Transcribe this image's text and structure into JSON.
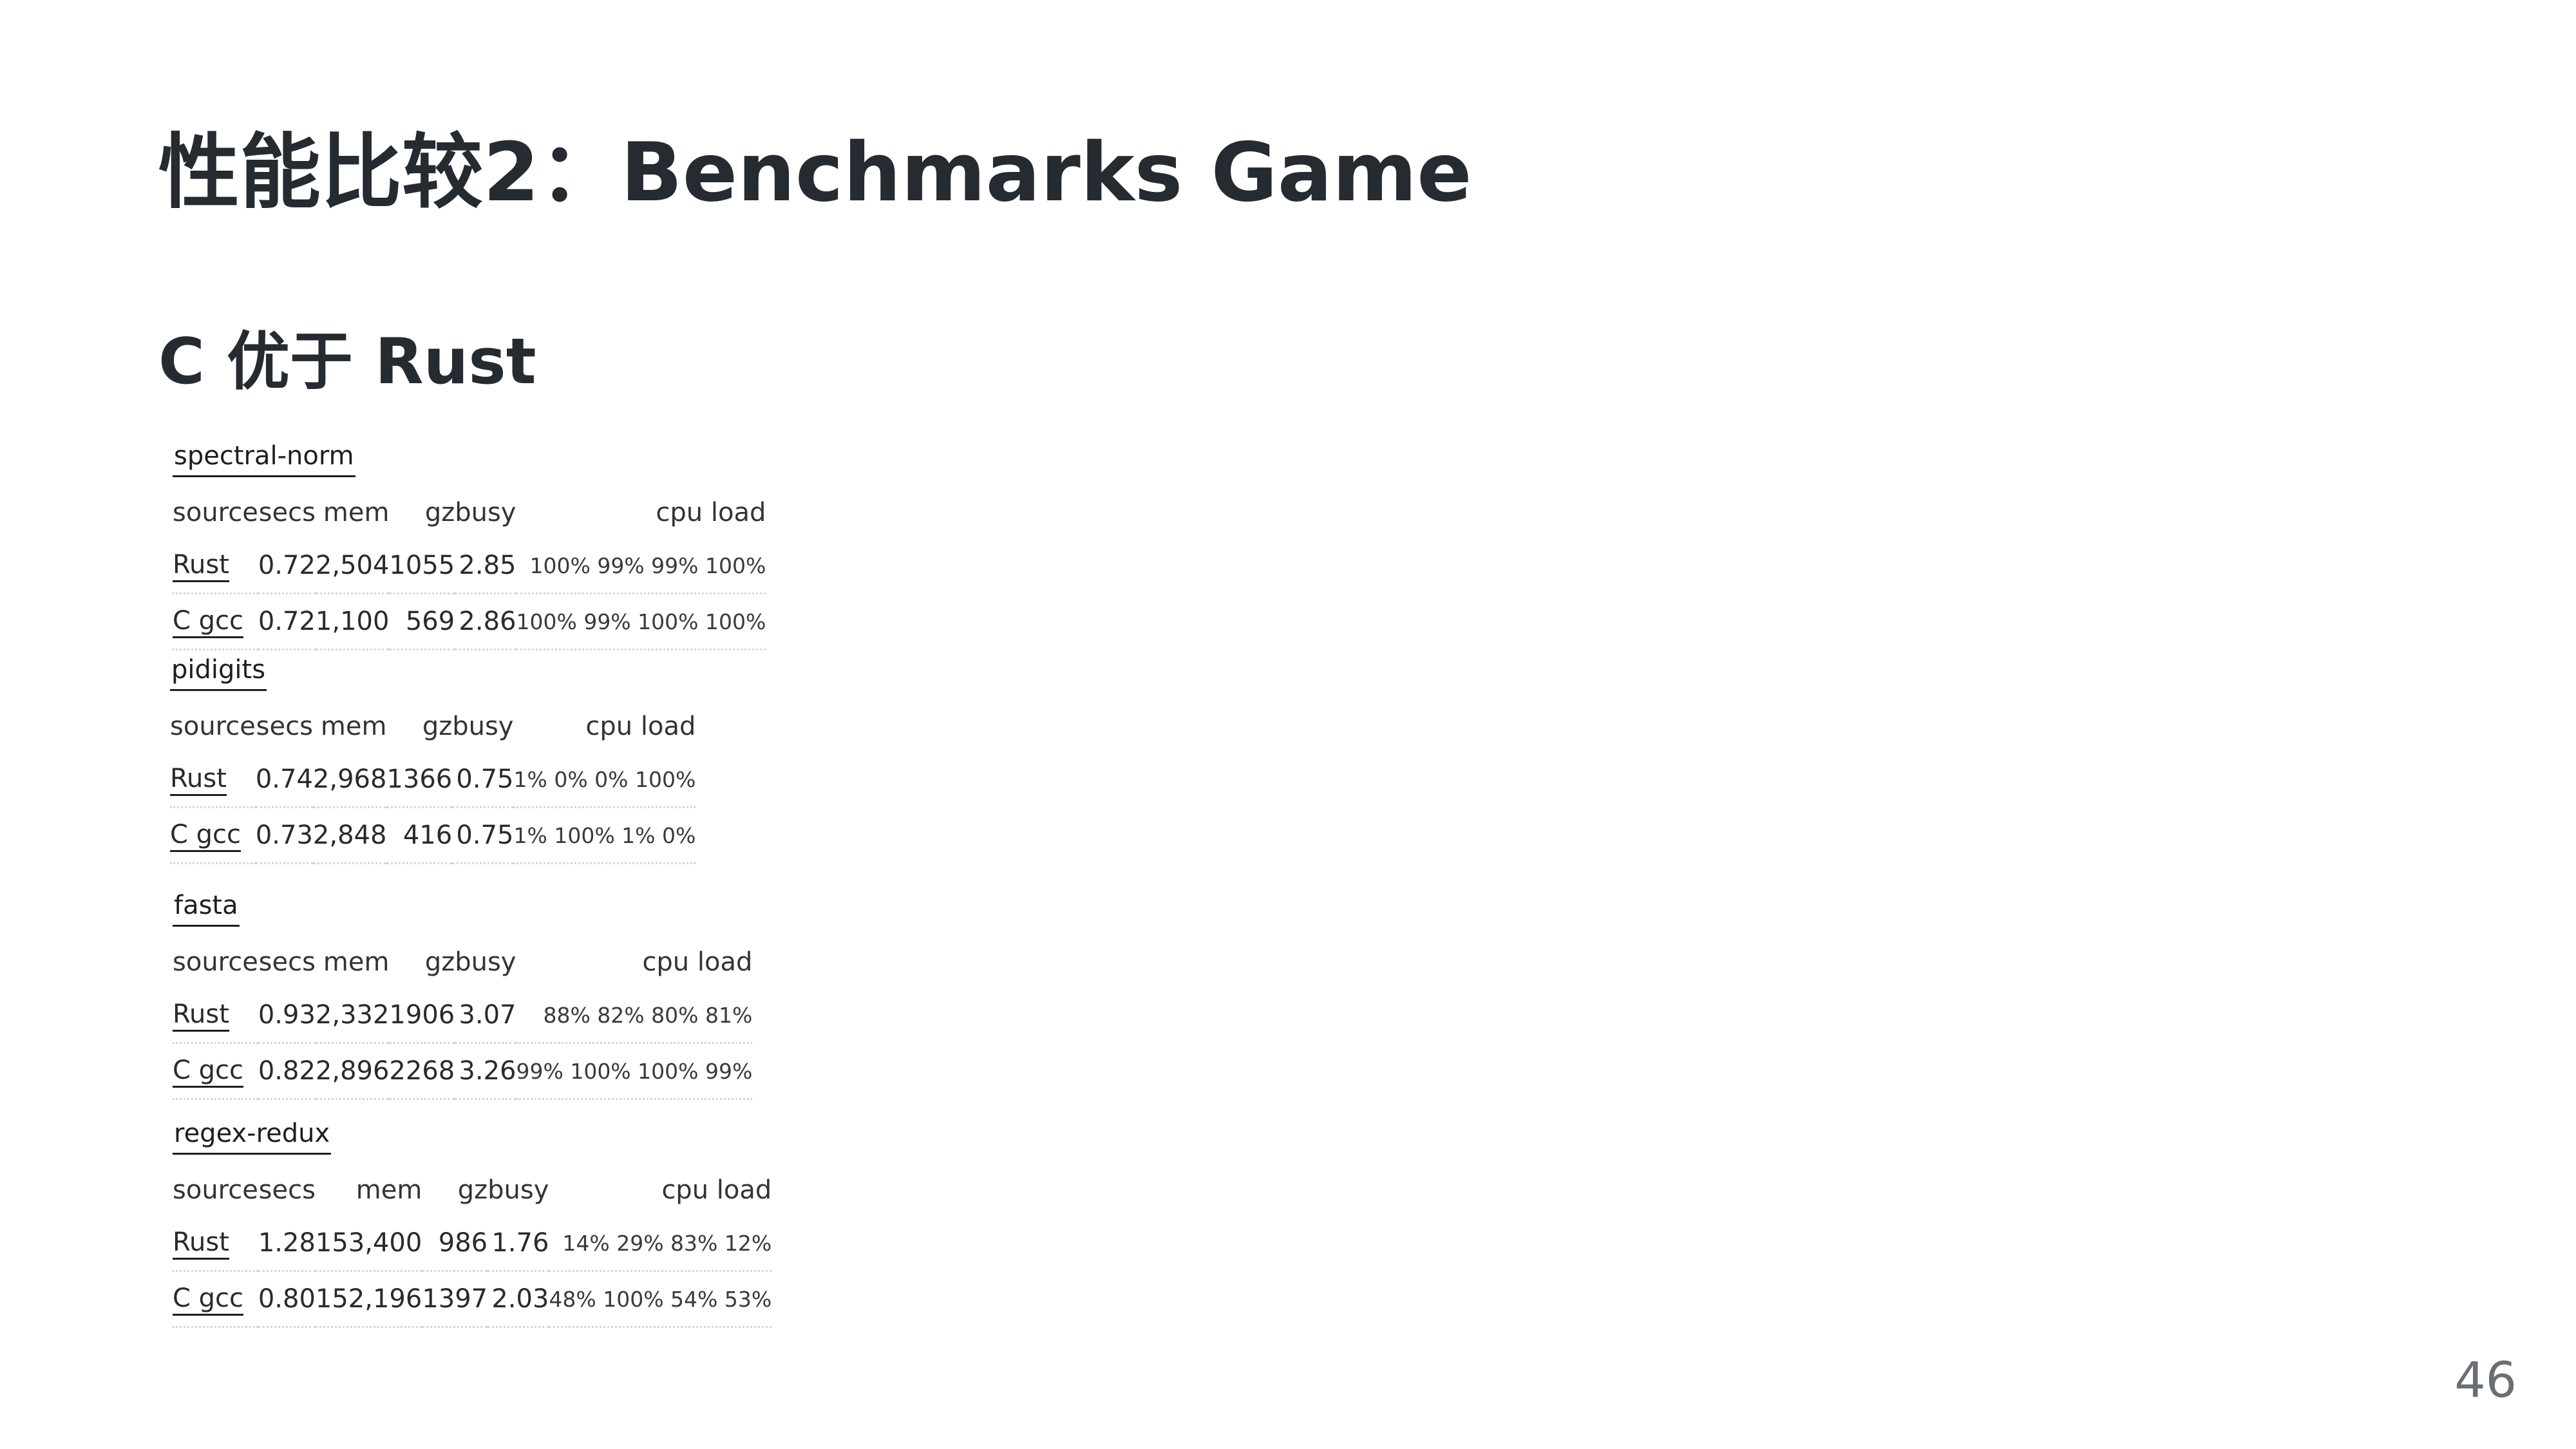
{
  "title": "性能比较2：Benchmarks Game",
  "subtitle": "C 优于 Rust",
  "page_number": "46",
  "columns": {
    "source": "source",
    "secs": "secs",
    "mem": "mem",
    "gz": "gz",
    "busy": "busy",
    "cpu_load": "cpu load"
  },
  "benchmarks": [
    {
      "name": "spectral-norm",
      "rows": [
        {
          "source": "Rust",
          "secs": "0.72",
          "mem": "2,504",
          "gz": "1055",
          "busy": "2.85",
          "cpu_load": "100% 99% 99% 100%"
        },
        {
          "source": "C gcc",
          "secs": "0.72",
          "mem": "1,100",
          "gz": "569",
          "busy": "2.86",
          "cpu_load": "100% 99% 100% 100%"
        }
      ]
    },
    {
      "name": "pidigits",
      "rows": [
        {
          "source": "Rust",
          "secs": "0.74",
          "mem": "2,968",
          "gz": "1366",
          "busy": "0.75",
          "cpu_load": "1% 0% 0% 100%"
        },
        {
          "source": "C gcc",
          "secs": "0.73",
          "mem": "2,848",
          "gz": "416",
          "busy": "0.75",
          "cpu_load": "1% 100% 1% 0%"
        }
      ]
    },
    {
      "name": "fasta",
      "rows": [
        {
          "source": "Rust",
          "secs": "0.93",
          "mem": "2,332",
          "gz": "1906",
          "busy": "3.07",
          "cpu_load": "88% 82% 80% 81%"
        },
        {
          "source": "C gcc",
          "secs": "0.82",
          "mem": "2,896",
          "gz": "2268",
          "busy": "3.26",
          "cpu_load": "99% 100% 100% 99%"
        }
      ]
    },
    {
      "name": "regex-redux",
      "rows": [
        {
          "source": "Rust",
          "secs": "1.28",
          "mem": "153,400",
          "gz": "986",
          "busy": "1.76",
          "cpu_load": "14% 29% 83% 12%"
        },
        {
          "source": "C gcc",
          "secs": "0.80",
          "mem": "152,196",
          "gz": "1397",
          "busy": "2.03",
          "cpu_load": "48% 100% 54% 53%"
        }
      ]
    }
  ]
}
